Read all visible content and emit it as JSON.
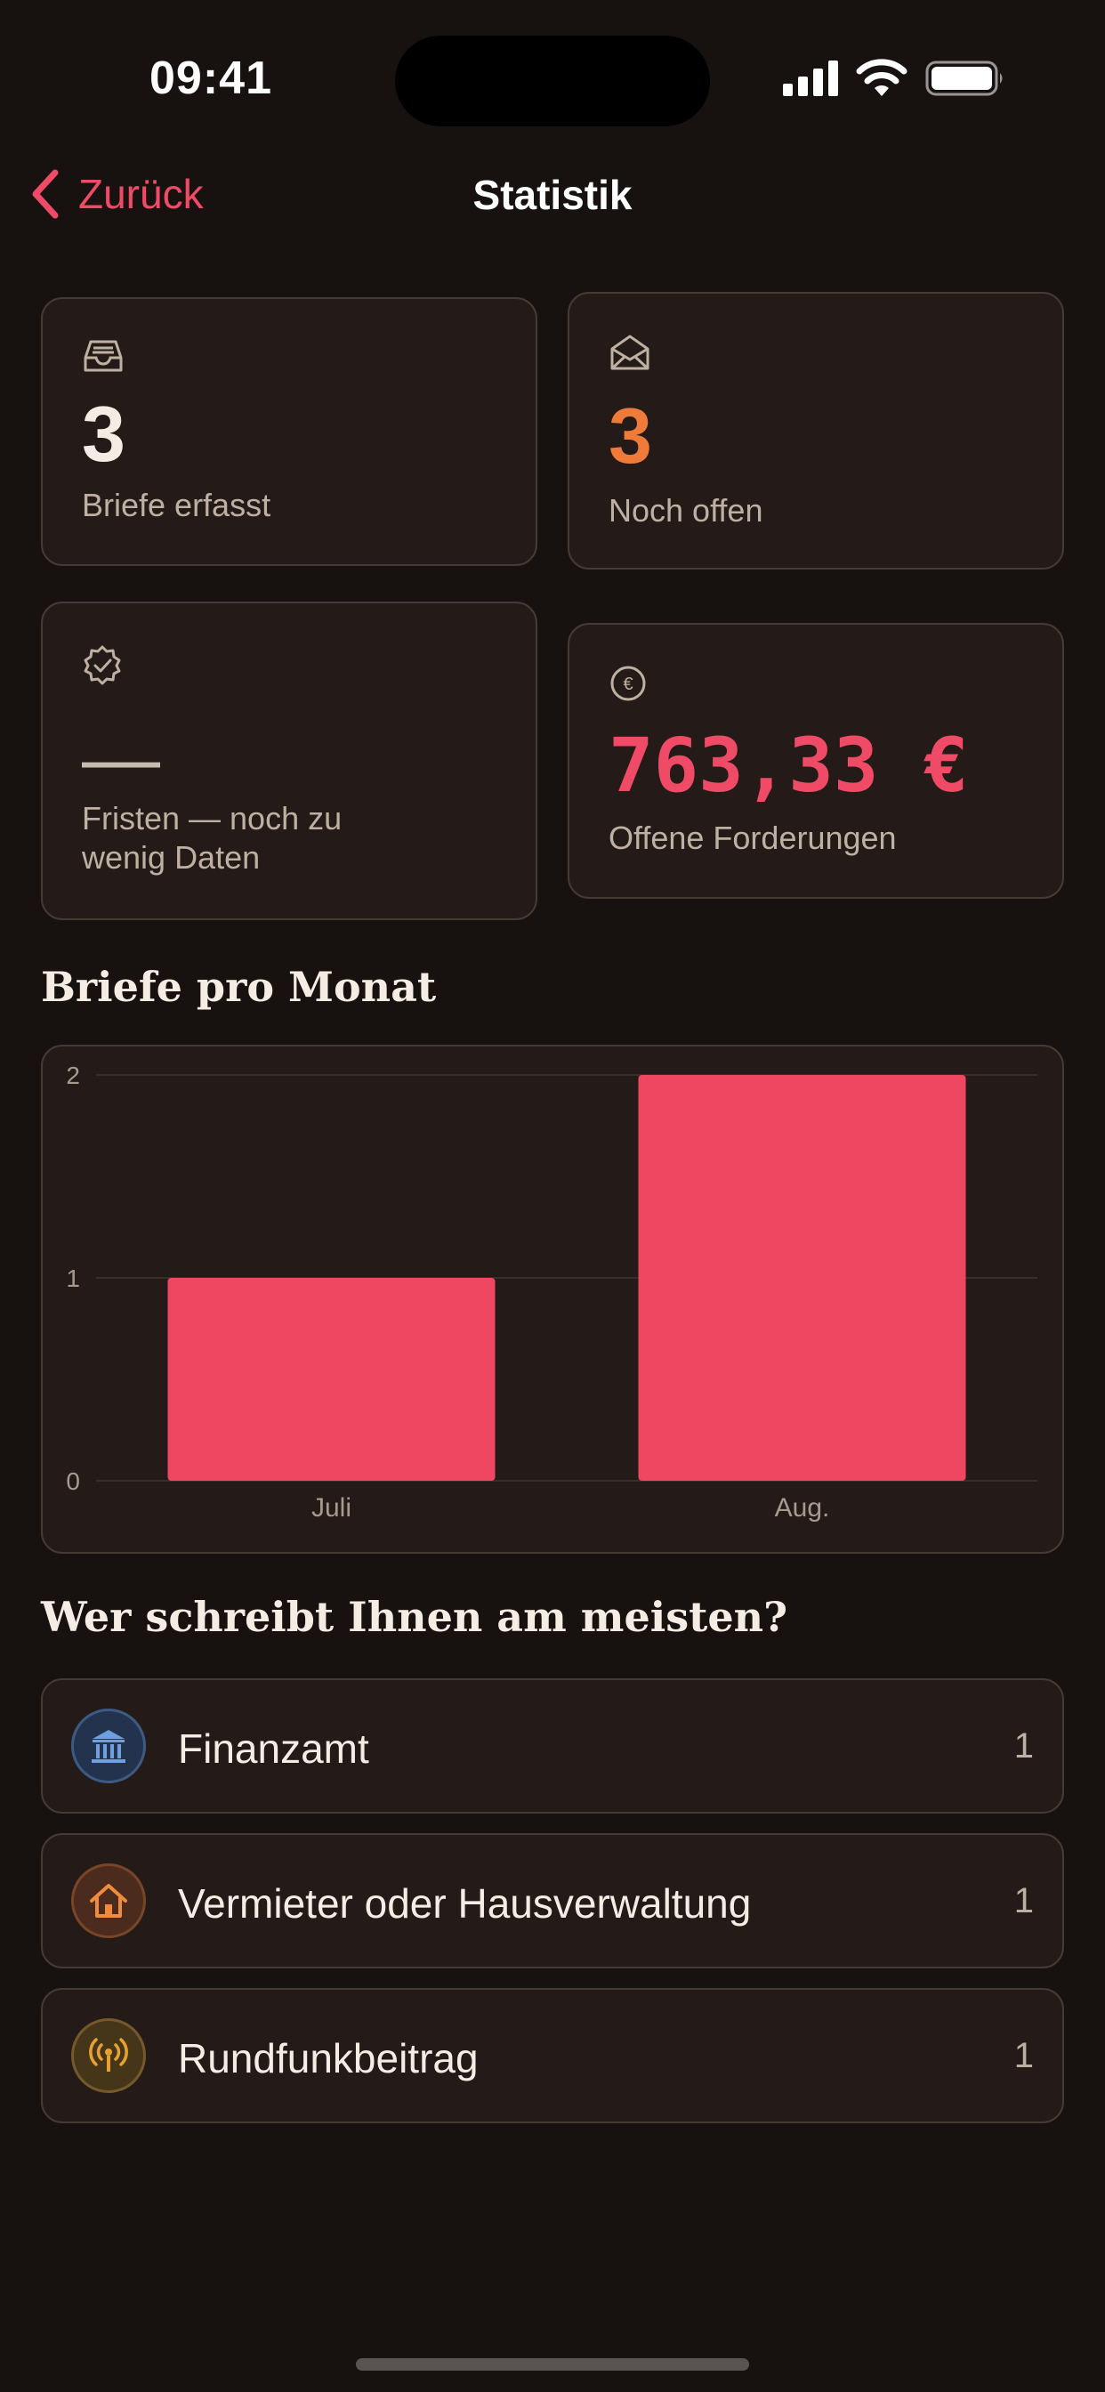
{
  "status_bar": {
    "time": "09:41"
  },
  "nav": {
    "back_label": "Zurück",
    "title": "Statistik"
  },
  "stats": {
    "letters": {
      "value": "3",
      "label": "Briefe erfasst",
      "icon": "inbox-tray-icon"
    },
    "open": {
      "value": "3",
      "label": "Noch offen",
      "icon": "envelope-open-icon",
      "color": "#f07a3a"
    },
    "deadlines": {
      "value": "—",
      "label_line1": "Fristen — noch zu",
      "label_line2": "wenig Daten",
      "icon": "check-seal-icon"
    },
    "claims": {
      "value": "763,33 €",
      "label": "Offene Forderungen",
      "icon": "euro-circle-icon",
      "color": "#ef4b66"
    }
  },
  "chart_section": {
    "title": "Briefe pro Monat"
  },
  "chart_data": {
    "type": "bar",
    "categories": [
      "Juli",
      "Aug."
    ],
    "values": [
      1,
      2
    ],
    "ylim": [
      0,
      2
    ],
    "yticks": [
      "0",
      "1",
      "2"
    ],
    "grid": true,
    "color": "#ef4661"
  },
  "senders_section": {
    "title": "Wer schreibt Ihnen am meisten?"
  },
  "senders": [
    {
      "name": "Finanzamt",
      "count": "1",
      "icon": "bank-icon",
      "color": "#6e9fe0"
    },
    {
      "name": "Vermieter oder Hausverwaltung",
      "count": "1",
      "icon": "house-icon",
      "color": "#f08a3c"
    },
    {
      "name": "Rundfunkbeitrag",
      "count": "1",
      "icon": "broadcast-antenna-icon",
      "color": "#e6a12e"
    }
  ]
}
